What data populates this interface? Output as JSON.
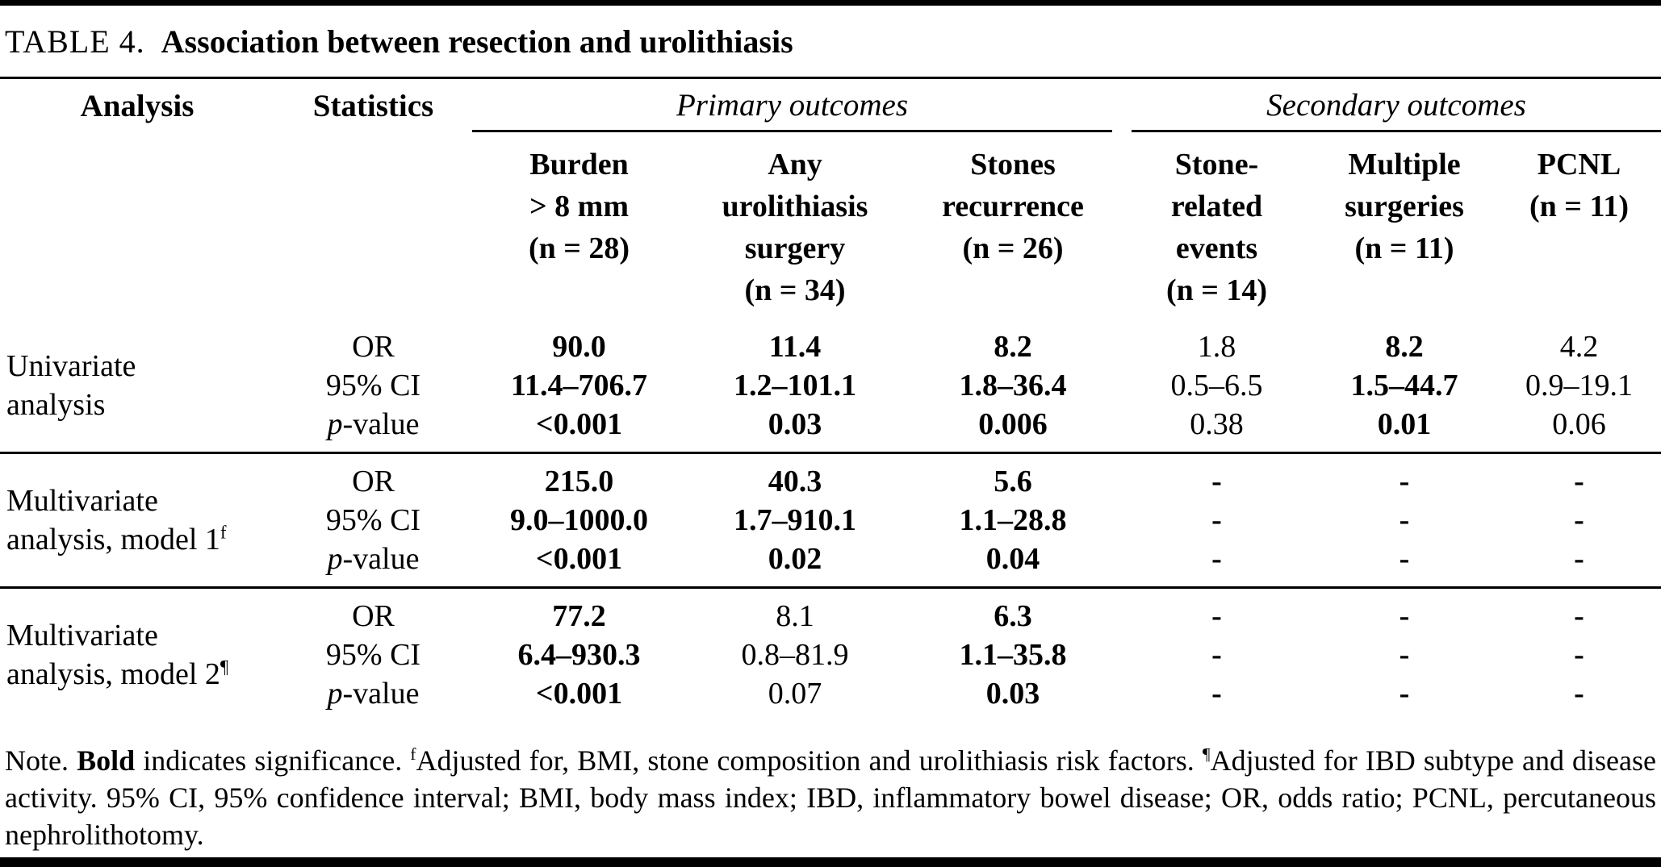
{
  "title": {
    "label": "TABLE 4.",
    "caption": "Association between resection and urolithiasis"
  },
  "header": {
    "analysis": "Analysis",
    "statistics": "Statistics",
    "primary_group": "Primary outcomes",
    "secondary_group": "Secondary outcomes",
    "columns": [
      "Burden\n> 8 mm\n(n = 28)",
      "Any\nurolithiasis\nsurgery\n(n = 34)",
      "Stones\nrecurrence\n(n = 26)",
      "Stone-\nrelated\nevents\n(n = 14)",
      "Multiple\nsurgeries\n(n = 11)",
      "PCNL\n(n = 11)"
    ]
  },
  "stats": {
    "or": "OR",
    "ci": "95% CI",
    "p_italic": "p",
    "p_rest": "-value"
  },
  "groups": [
    {
      "label": "Univariate\nanalysis",
      "sup": "",
      "cells": [
        {
          "or": "90.0",
          "or_bold": true,
          "ci": "11.4–706.7",
          "ci_bold": true,
          "p": "<0.001",
          "p_bold": true
        },
        {
          "or": "11.4",
          "or_bold": true,
          "ci": "1.2–101.1",
          "ci_bold": true,
          "p": "0.03",
          "p_bold": true
        },
        {
          "or": "8.2",
          "or_bold": true,
          "ci": "1.8–36.4",
          "ci_bold": true,
          "p": "0.006",
          "p_bold": true
        },
        {
          "or": "1.8",
          "or_bold": false,
          "ci": "0.5–6.5",
          "ci_bold": false,
          "p": "0.38",
          "p_bold": false
        },
        {
          "or": "8.2",
          "or_bold": true,
          "ci": "1.5–44.7",
          "ci_bold": true,
          "p": "0.01",
          "p_bold": true
        },
        {
          "or": "4.2",
          "or_bold": false,
          "ci": "0.9–19.1",
          "ci_bold": false,
          "p": "0.06",
          "p_bold": false
        }
      ]
    },
    {
      "label": "Multivariate\nanalysis, model 1",
      "sup": "f",
      "cells": [
        {
          "or": "215.0",
          "or_bold": true,
          "ci": "9.0–1000.0",
          "ci_bold": true,
          "p": "<0.001",
          "p_bold": true
        },
        {
          "or": "40.3",
          "or_bold": true,
          "ci": "1.7–910.1",
          "ci_bold": true,
          "p": "0.02",
          "p_bold": true
        },
        {
          "or": "5.6",
          "or_bold": true,
          "ci": "1.1–28.8",
          "ci_bold": true,
          "p": "0.04",
          "p_bold": true
        },
        {
          "or": "-",
          "or_bold": true,
          "ci": "-",
          "ci_bold": true,
          "p": "-",
          "p_bold": true
        },
        {
          "or": "-",
          "or_bold": true,
          "ci": "-",
          "ci_bold": true,
          "p": "-",
          "p_bold": true
        },
        {
          "or": "-",
          "or_bold": true,
          "ci": "-",
          "ci_bold": true,
          "p": "-",
          "p_bold": true
        }
      ]
    },
    {
      "label": "Multivariate\nanalysis, model 2",
      "sup": "¶",
      "cells": [
        {
          "or": "77.2",
          "or_bold": true,
          "ci": "6.4–930.3",
          "ci_bold": true,
          "p": "<0.001",
          "p_bold": true
        },
        {
          "or": "8.1",
          "or_bold": false,
          "ci": "0.8–81.9",
          "ci_bold": false,
          "p": "0.07",
          "p_bold": false
        },
        {
          "or": "6.3",
          "or_bold": true,
          "ci": "1.1–35.8",
          "ci_bold": true,
          "p": "0.03",
          "p_bold": true
        },
        {
          "or": "-",
          "or_bold": true,
          "ci": "-",
          "ci_bold": true,
          "p": "-",
          "p_bold": true
        },
        {
          "or": "-",
          "or_bold": true,
          "ci": "-",
          "ci_bold": true,
          "p": "-",
          "p_bold": true
        },
        {
          "or": "-",
          "or_bold": true,
          "ci": "-",
          "ci_bold": true,
          "p": "-",
          "p_bold": true
        }
      ]
    }
  ],
  "footnote": {
    "note_label": "Note. ",
    "bold_word": "Bold",
    "seg1": " indicates significance. ",
    "sup_f": "f",
    "seg2": "Adjusted for, BMI, stone composition and urolithiasis risk factors. ",
    "sup_p": "¶",
    "seg3": "Adjusted for IBD subtype and disease activity. 95% CI, 95% confidence interval; BMI, body mass index; IBD, inflammatory bowel disease; OR, odds ratio; PCNL, percutaneous nephrolithotomy."
  }
}
